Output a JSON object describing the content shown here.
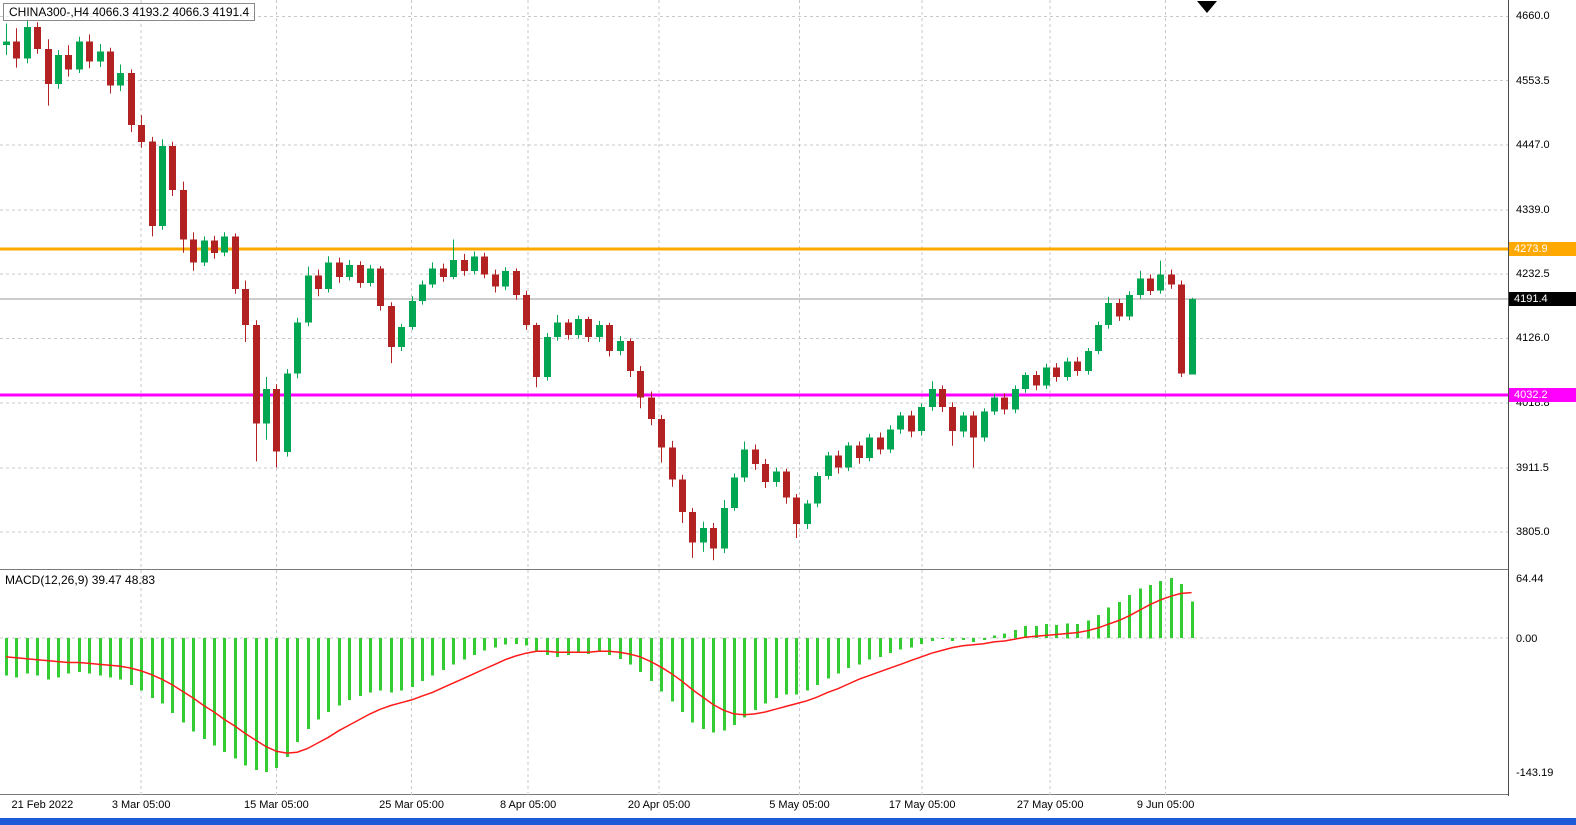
{
  "header": {
    "title": "CHINA300-,H4 4066.3 4193.2 4066.3 4191.4"
  },
  "colors": {
    "background": "#ffffff",
    "grid": "#c8c8c8",
    "candle_up": "#00a651",
    "candle_down": "#b22222",
    "macd_hist": "#33cc33",
    "macd_signal": "#ff1a1a",
    "last_price_line": "#999999",
    "last_price_badge": "#000000",
    "hline_orange": "#ffa800",
    "hline_magenta": "#ff00ff",
    "bottom_bar": "#1e5ad7",
    "axis_text": "#000000"
  },
  "chart_data": [
    {
      "type": "candlestick",
      "title": "CHINA300-,H4",
      "symbol": "CHINA300-",
      "timeframe": "H4",
      "ohlc": {
        "open": 4066.3,
        "high": 4193.2,
        "low": 4066.3,
        "close": 4191.4
      },
      "ylim": [
        3742,
        4687
      ],
      "yticks": [
        {
          "label": "4660.0",
          "value": 4660.0
        },
        {
          "label": "4553.5",
          "value": 4553.5
        },
        {
          "label": "4447.0",
          "value": 4447.0
        },
        {
          "label": "4339.0",
          "value": 4339.0
        },
        {
          "label": "4232.5",
          "value": 4232.5
        },
        {
          "label": "4126.0",
          "value": 4126.0
        },
        {
          "label": "4018.8",
          "value": 4018.8
        },
        {
          "label": "3911.5",
          "value": 3911.5
        },
        {
          "label": "3805.0",
          "value": 3805.0
        }
      ],
      "xticks": [
        {
          "label": "21 Feb 2022",
          "index": 3.5,
          "gridline": false
        },
        {
          "label": "3 Mar 05:00",
          "index": 13,
          "gridline": true
        },
        {
          "label": "15 Mar 05:00",
          "index": 26,
          "gridline": true
        },
        {
          "label": "25 Mar 05:00",
          "index": 39,
          "gridline": true
        },
        {
          "label": "8 Apr 05:00",
          "index": 50.2,
          "gridline": true
        },
        {
          "label": "20 Apr 05:00",
          "index": 62.8,
          "gridline": true
        },
        {
          "label": "5 May 05:00",
          "index": 76.3,
          "gridline": true
        },
        {
          "label": "17 May 05:00",
          "index": 88.1,
          "gridline": true
        },
        {
          "label": "27 May 05:00",
          "index": 100.4,
          "gridline": true
        },
        {
          "label": "9 Jun 05:00",
          "index": 111.5,
          "gridline": true
        }
      ],
      "hlines": [
        {
          "name": "resistance-line-orange",
          "label": "4273.9",
          "value": 4273.9,
          "color": "#ffa800"
        },
        {
          "name": "support-line-magenta",
          "label": "4032.2",
          "value": 4032.2,
          "color": "#ff00ff"
        }
      ],
      "last_price": {
        "label": "4191.4",
        "value": 4191.4
      },
      "candles": [
        [
          4612,
          4648,
          4596,
          4618
        ],
        [
          4618,
          4640,
          4575,
          4590
        ],
        [
          4590,
          4652,
          4582,
          4642
        ],
        [
          4642,
          4650,
          4598,
          4606
        ],
        [
          4606,
          4622,
          4512,
          4548
        ],
        [
          4548,
          4604,
          4540,
          4596
        ],
        [
          4596,
          4612,
          4560,
          4572
        ],
        [
          4572,
          4626,
          4566,
          4618
        ],
        [
          4618,
          4630,
          4574,
          4585
        ],
        [
          4585,
          4614,
          4576,
          4602
        ],
        [
          4602,
          4608,
          4532,
          4545
        ],
        [
          4545,
          4580,
          4536,
          4566
        ],
        [
          4566,
          4572,
          4468,
          4480
        ],
        [
          4480,
          4496,
          4442,
          4452
        ],
        [
          4452,
          4460,
          4295,
          4312
        ],
        [
          4312,
          4456,
          4306,
          4445
        ],
        [
          4445,
          4452,
          4362,
          4372
        ],
        [
          4372,
          4386,
          4268,
          4290
        ],
        [
          4290,
          4302,
          4238,
          4252
        ],
        [
          4252,
          4295,
          4246,
          4288
        ],
        [
          4288,
          4296,
          4258,
          4268
        ],
        [
          4268,
          4302,
          4262,
          4295
        ],
        [
          4295,
          4300,
          4200,
          4208
        ],
        [
          4208,
          4222,
          4120,
          4148
        ],
        [
          4148,
          4156,
          3922,
          3985
        ],
        [
          3985,
          4062,
          3958,
          4042
        ],
        [
          4042,
          4050,
          3912,
          3938
        ],
        [
          3938,
          4075,
          3930,
          4068
        ],
        [
          4068,
          4160,
          4060,
          4152
        ],
        [
          4152,
          4245,
          4146,
          4230
        ],
        [
          4230,
          4240,
          4196,
          4208
        ],
        [
          4208,
          4262,
          4202,
          4252
        ],
        [
          4252,
          4260,
          4218,
          4228
        ],
        [
          4228,
          4256,
          4222,
          4248
        ],
        [
          4248,
          4254,
          4210,
          4218
        ],
        [
          4218,
          4248,
          4212,
          4242
        ],
        [
          4242,
          4246,
          4172,
          4180
        ],
        [
          4180,
          4186,
          4085,
          4112
        ],
        [
          4112,
          4150,
          4105,
          4145
        ],
        [
          4145,
          4196,
          4140,
          4188
        ],
        [
          4188,
          4222,
          4182,
          4215
        ],
        [
          4215,
          4252,
          4210,
          4242
        ],
        [
          4242,
          4250,
          4220,
          4228
        ],
        [
          4228,
          4290,
          4224,
          4256
        ],
        [
          4256,
          4266,
          4230,
          4238
        ],
        [
          4238,
          4270,
          4232,
          4262
        ],
        [
          4262,
          4268,
          4226,
          4232
        ],
        [
          4232,
          4240,
          4202,
          4212
        ],
        [
          4212,
          4244,
          4206,
          4238
        ],
        [
          4238,
          4242,
          4190,
          4198
        ],
        [
          4198,
          4205,
          4140,
          4148
        ],
        [
          4148,
          4152,
          4045,
          4062
        ],
        [
          4062,
          4135,
          4056,
          4128
        ],
        [
          4128,
          4165,
          4122,
          4152
        ],
        [
          4152,
          4158,
          4124,
          4132
        ],
        [
          4132,
          4164,
          4126,
          4158
        ],
        [
          4158,
          4162,
          4120,
          4128
        ],
        [
          4128,
          4155,
          4120,
          4148
        ],
        [
          4148,
          4152,
          4096,
          4105
        ],
        [
          4105,
          4130,
          4098,
          4122
        ],
        [
          4122,
          4126,
          4062,
          4072
        ],
        [
          4072,
          4080,
          4010,
          4028
        ],
        [
          4028,
          4038,
          3982,
          3992
        ],
        [
          3992,
          3999,
          3920,
          3945
        ],
        [
          3945,
          3956,
          3880,
          3892
        ],
        [
          3892,
          3900,
          3820,
          3838
        ],
        [
          3838,
          3845,
          3762,
          3788
        ],
        [
          3788,
          3822,
          3772,
          3812
        ],
        [
          3812,
          3820,
          3758,
          3778
        ],
        [
          3778,
          3858,
          3770,
          3845
        ],
        [
          3845,
          3902,
          3840,
          3895
        ],
        [
          3895,
          3955,
          3888,
          3942
        ],
        [
          3942,
          3950,
          3908,
          3918
        ],
        [
          3918,
          3926,
          3878,
          3888
        ],
        [
          3888,
          3912,
          3880,
          3905
        ],
        [
          3905,
          3910,
          3852,
          3862
        ],
        [
          3862,
          3868,
          3795,
          3818
        ],
        [
          3818,
          3858,
          3810,
          3852
        ],
        [
          3852,
          3904,
          3846,
          3898
        ],
        [
          3898,
          3938,
          3892,
          3932
        ],
        [
          3932,
          3940,
          3902,
          3912
        ],
        [
          3912,
          3954,
          3906,
          3948
        ],
        [
          3948,
          3955,
          3918,
          3928
        ],
        [
          3928,
          3968,
          3922,
          3962
        ],
        [
          3962,
          3970,
          3934,
          3942
        ],
        [
          3942,
          3982,
          3936,
          3975
        ],
        [
          3975,
          4004,
          3968,
          3998
        ],
        [
          3998,
          4006,
          3962,
          3972
        ],
        [
          3972,
          4018,
          3965,
          4012
        ],
        [
          4012,
          4055,
          4006,
          4042
        ],
        [
          4042,
          4048,
          4004,
          4012
        ],
        [
          4012,
          4020,
          3948,
          3972
        ],
        [
          3972,
          4004,
          3962,
          3998
        ],
        [
          3998,
          4005,
          3912,
          3962
        ],
        [
          3962,
          4010,
          3955,
          4005
        ],
        [
          4005,
          4034,
          3999,
          4028
        ],
        [
          4028,
          4035,
          4000,
          4008
        ],
        [
          4008,
          4048,
          4002,
          4042
        ],
        [
          4042,
          4070,
          4036,
          4065
        ],
        [
          4065,
          4072,
          4040,
          4048
        ],
        [
          4048,
          4084,
          4042,
          4078
        ],
        [
          4078,
          4085,
          4054,
          4062
        ],
        [
          4062,
          4094,
          4056,
          4088
        ],
        [
          4088,
          4095,
          4064,
          4072
        ],
        [
          4072,
          4110,
          4066,
          4105
        ],
        [
          4105,
          4154,
          4100,
          4148
        ],
        [
          4148,
          4195,
          4142,
          4185
        ],
        [
          4185,
          4192,
          4155,
          4162
        ],
        [
          4162,
          4204,
          4156,
          4198
        ],
        [
          4198,
          4238,
          4192,
          4225
        ],
        [
          4225,
          4232,
          4198,
          4205
        ],
        [
          4205,
          4255,
          4200,
          4232
        ],
        [
          4232,
          4240,
          4208,
          4215
        ],
        [
          4215,
          4222,
          4062,
          4068
        ],
        [
          4066.3,
          4193.2,
          4066.3,
          4191.4
        ]
      ]
    },
    {
      "type": "bar",
      "label": "MACD(12,26,9) 39.47 48.83",
      "indicator": "MACD",
      "params": "12,26,9",
      "macd_value": 39.47,
      "signal_value": 48.83,
      "ylim": [
        -167.8,
        73.0
      ],
      "yticks": [
        {
          "label": "64.44",
          "value": 64.44
        },
        {
          "label": "0.00",
          "value": 0
        },
        {
          "label": "-143.19",
          "value": -143.19
        }
      ],
      "histogram": [
        -40,
        -42,
        -38,
        -40,
        -44,
        -42,
        -38,
        -36,
        -38,
        -40,
        -42,
        -44,
        -50,
        -56,
        -64,
        -70,
        -80,
        -90,
        -100,
        -108,
        -115,
        -122,
        -129,
        -136,
        -141,
        -143.19,
        -139,
        -127,
        -111,
        -97,
        -87,
        -79,
        -72,
        -66,
        -62,
        -58,
        -56,
        -58,
        -56,
        -52,
        -46,
        -40,
        -34,
        -28,
        -23,
        -18,
        -13,
        -10,
        -7,
        -6,
        -8,
        -14,
        -18,
        -20,
        -18,
        -16,
        -17,
        -15,
        -18,
        -22,
        -28,
        -36,
        -46,
        -57,
        -68,
        -79,
        -90,
        -97,
        -101,
        -99,
        -93,
        -85,
        -77,
        -70,
        -64,
        -60,
        -60,
        -56,
        -50,
        -43,
        -38,
        -32,
        -28,
        -23,
        -20,
        -16,
        -12,
        -10,
        -6,
        -3,
        -1,
        -3,
        -2,
        -4,
        -2,
        3,
        5,
        9,
        13,
        13,
        15,
        14,
        16,
        15,
        19,
        25,
        33,
        39,
        46,
        53,
        57,
        61,
        64.44,
        58,
        39.47
      ],
      "signal": [
        -20,
        -21,
        -22,
        -23,
        -24,
        -25,
        -26,
        -26,
        -27,
        -28,
        -29,
        -30,
        -32,
        -35,
        -39,
        -44,
        -50,
        -57,
        -64,
        -72,
        -79,
        -87,
        -94,
        -102,
        -109,
        -116,
        -121,
        -123,
        -122,
        -118,
        -112,
        -106,
        -99,
        -93,
        -87,
        -81,
        -76,
        -72,
        -69,
        -66,
        -62,
        -58,
        -53,
        -48,
        -43,
        -38,
        -33,
        -28,
        -23,
        -19,
        -16,
        -14,
        -14,
        -15,
        -15,
        -15,
        -15,
        -14,
        -14,
        -15,
        -17,
        -20,
        -25,
        -31,
        -38,
        -46,
        -55,
        -63,
        -71,
        -77,
        -81,
        -82,
        -81,
        -79,
        -76,
        -73,
        -70,
        -67,
        -63,
        -58,
        -54,
        -49,
        -44,
        -40,
        -36,
        -32,
        -28,
        -24,
        -20,
        -16,
        -13,
        -10,
        -8,
        -7,
        -6,
        -4,
        -3,
        -1,
        1,
        2,
        3,
        4,
        5,
        6,
        8,
        11,
        15,
        19,
        24,
        30,
        36,
        41,
        45,
        48,
        48.83
      ]
    }
  ]
}
